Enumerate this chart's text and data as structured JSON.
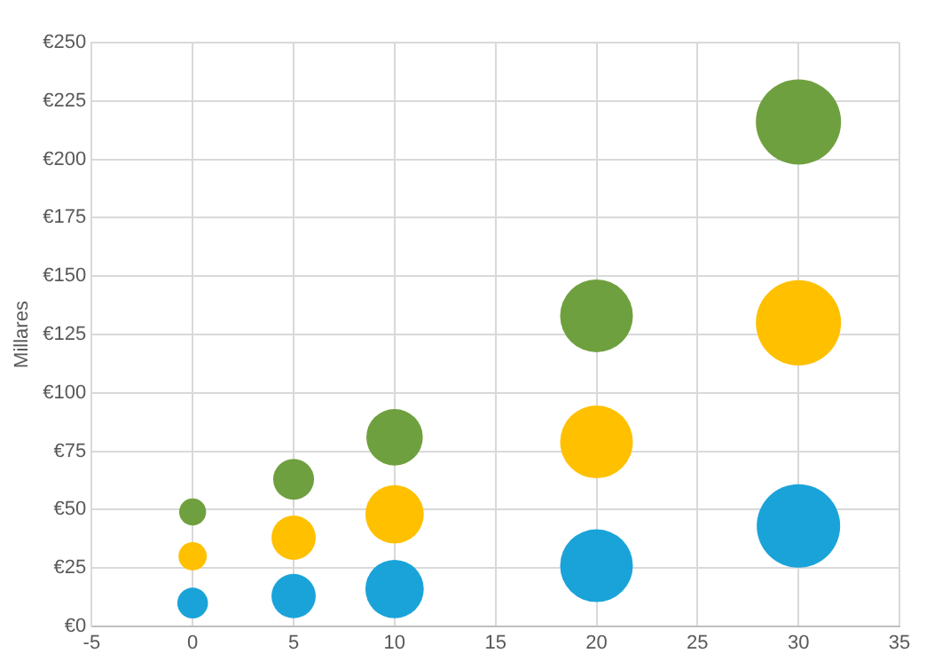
{
  "chart_data": {
    "type": "bubble",
    "ylabel": "Millares",
    "xlim": [
      -5,
      35
    ],
    "xticks": [
      -5,
      0,
      5,
      10,
      15,
      20,
      25,
      30,
      35
    ],
    "ylim": [
      0,
      250
    ],
    "yticks": [
      {
        "value": 0,
        "label": "€0"
      },
      {
        "value": 25,
        "label": "€25"
      },
      {
        "value": 50,
        "label": "€50"
      },
      {
        "value": 75,
        "label": "€75"
      },
      {
        "value": 100,
        "label": "€100"
      },
      {
        "value": 125,
        "label": "€125"
      },
      {
        "value": 150,
        "label": "€150"
      },
      {
        "value": 175,
        "label": "€175"
      },
      {
        "value": 200,
        "label": "€200"
      },
      {
        "value": 225,
        "label": "€225"
      },
      {
        "value": 250,
        "label": "€250"
      }
    ],
    "grid": true,
    "legend": false,
    "series": [
      {
        "color": "#1aa3d9",
        "x": [
          0,
          5,
          10,
          20,
          30
        ],
        "values": [
          10,
          13,
          16,
          26,
          43
        ],
        "sizes": [
          0.13,
          0.27,
          0.47,
          0.73,
          0.96
        ]
      },
      {
        "color": "#ffc000",
        "x": [
          0,
          5,
          10,
          20,
          30
        ],
        "values": [
          30,
          38,
          48,
          79,
          130
        ],
        "sizes": [
          0.11,
          0.27,
          0.47,
          0.73,
          1
        ]
      },
      {
        "color": "#6fa03f",
        "x": [
          0,
          5,
          10,
          20,
          30
        ],
        "values": [
          49,
          63,
          81,
          133,
          216
        ],
        "sizes": [
          0.1,
          0.23,
          0.44,
          0.73,
          1
        ]
      }
    ]
  }
}
